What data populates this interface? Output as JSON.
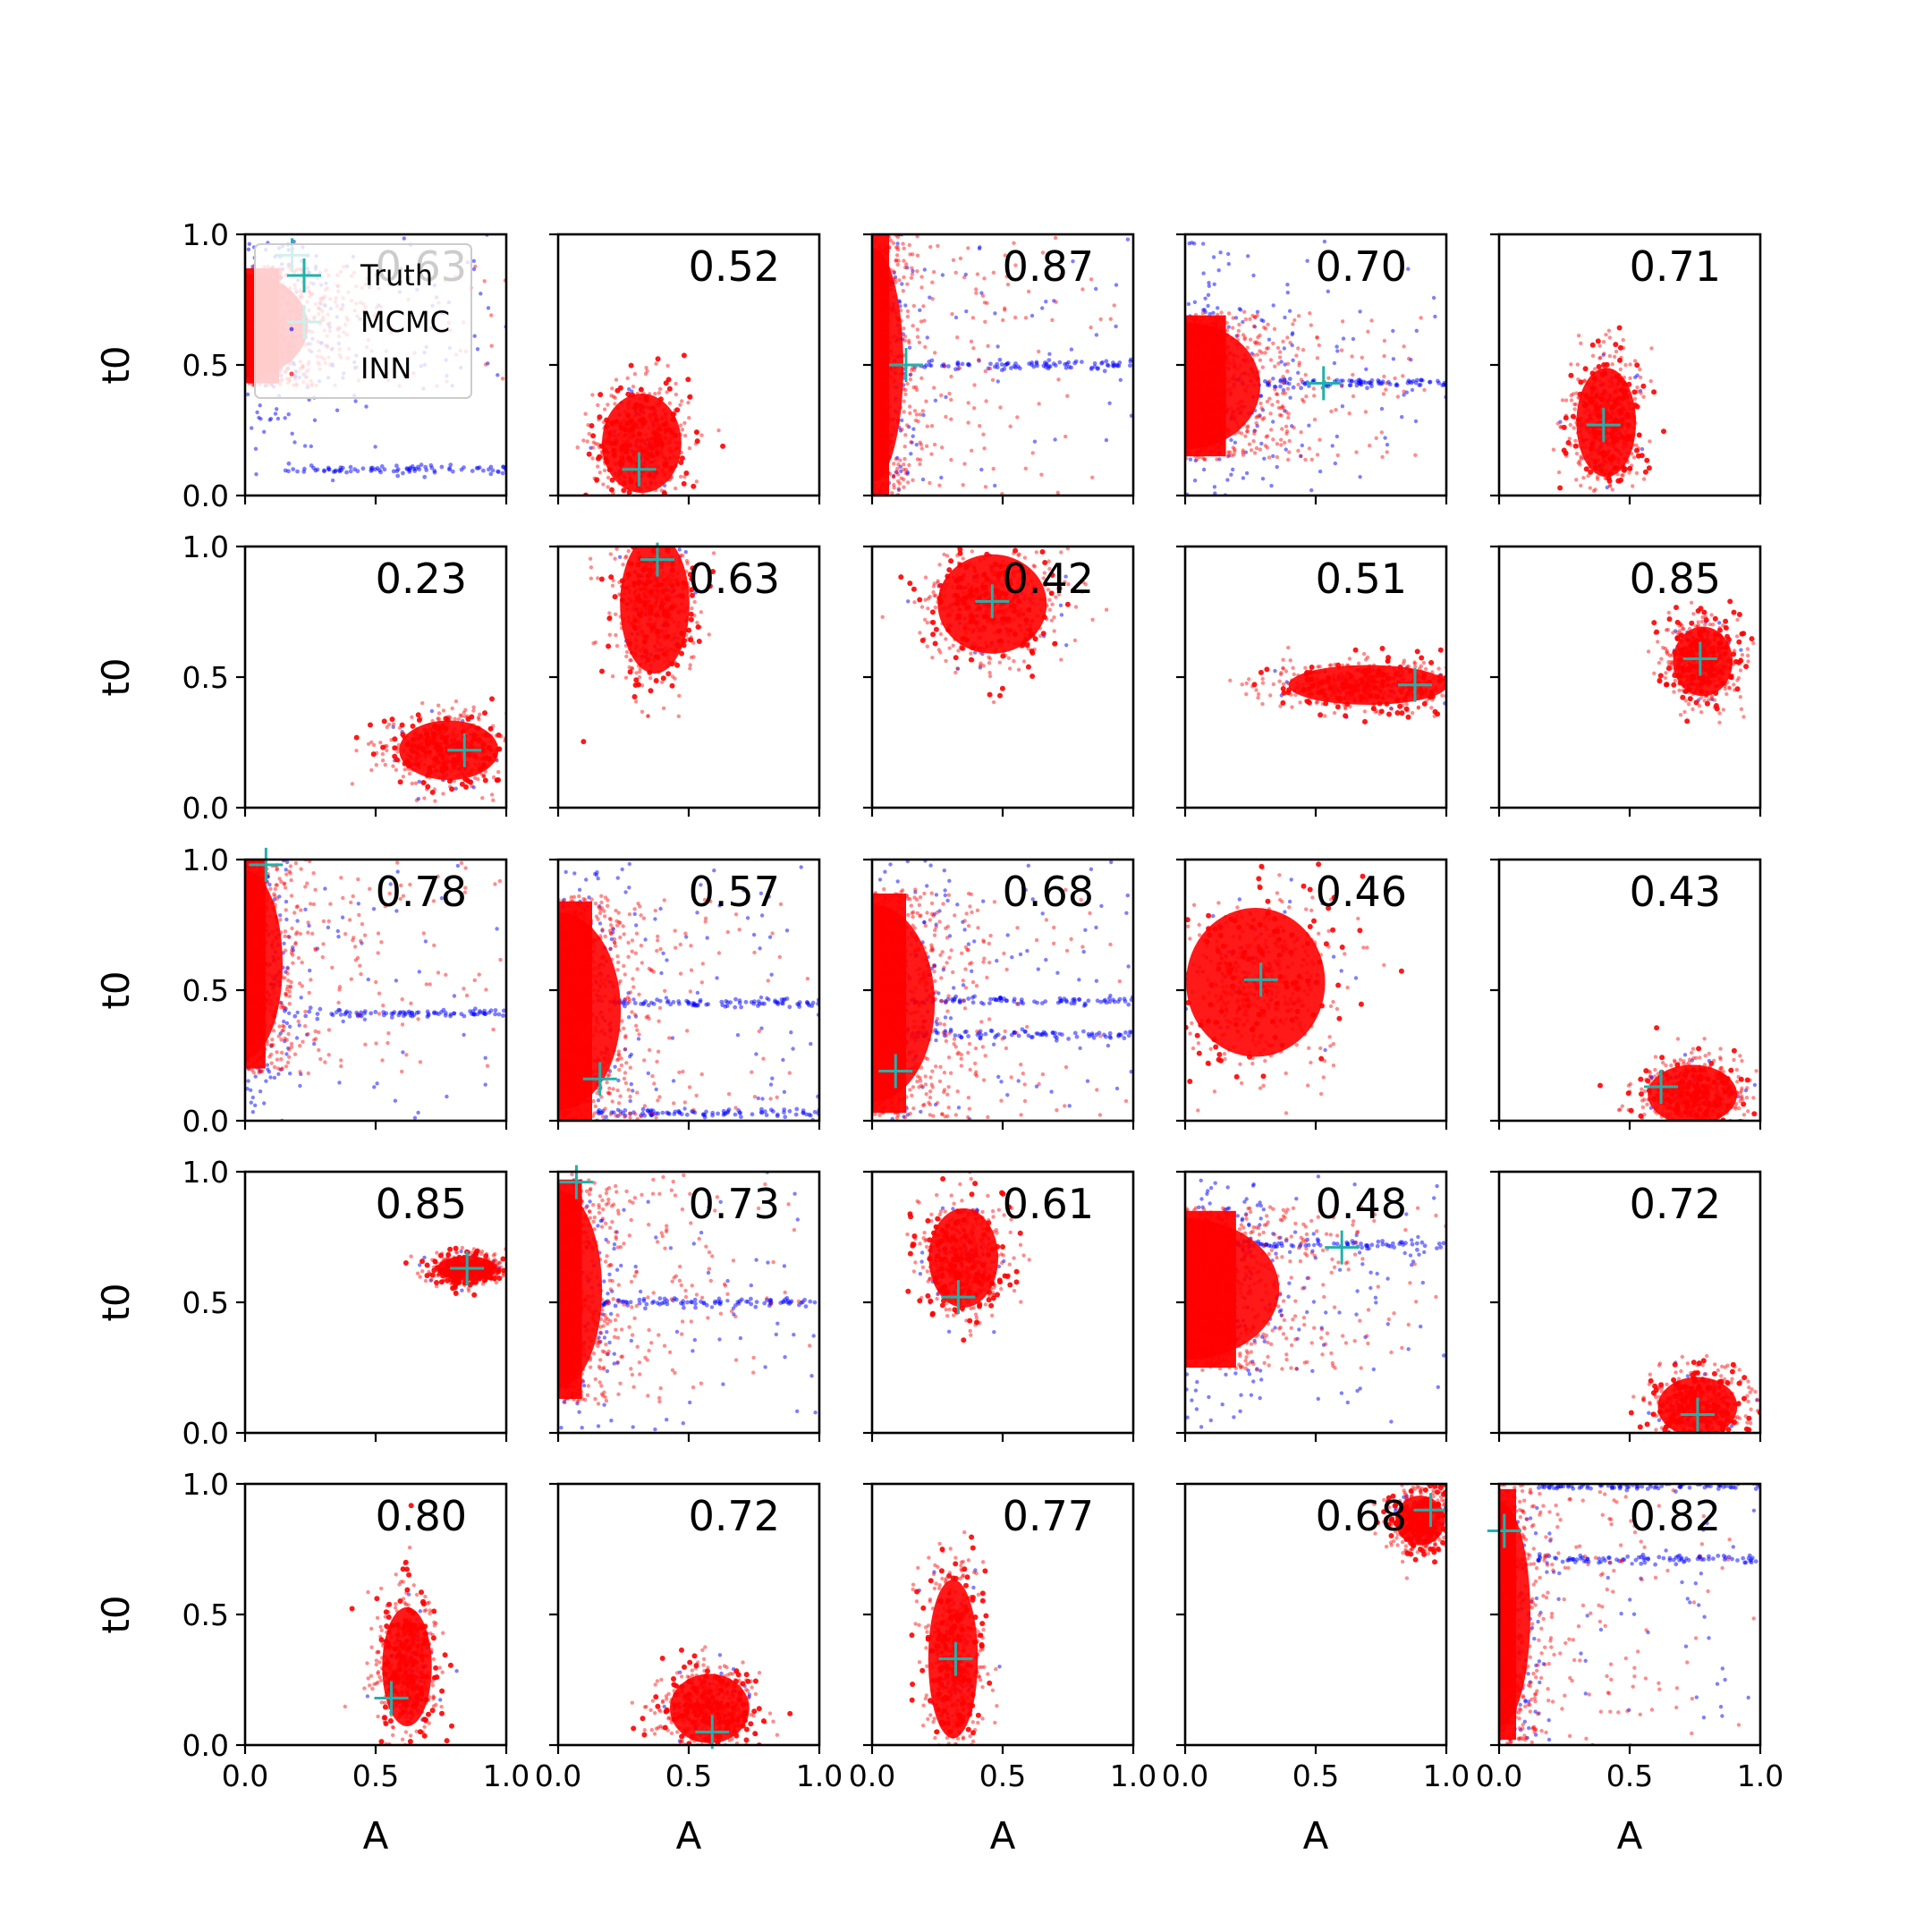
{
  "chart_data": {
    "type": "scatter",
    "layout": {
      "rows": 5,
      "cols": 5
    },
    "xlabel": "A",
    "ylabel": "t0",
    "xlim": [
      0,
      1
    ],
    "ylim": [
      0,
      1
    ],
    "xticks": [
      "0.0",
      "0.5",
      "1.0"
    ],
    "yticks": [
      "0.0",
      "0.5",
      "1.0"
    ],
    "grid": false,
    "legend": {
      "placement": "top-left of first panel",
      "entries": [
        {
          "label": "Truth",
          "color": "#20b2aa",
          "marker": "plus"
        },
        {
          "label": "MCMC",
          "color": "#0000ff",
          "marker": "dot"
        },
        {
          "label": "INN",
          "color": "#ff0000",
          "marker": "dot"
        }
      ]
    },
    "series_colors": {
      "Truth": "#20b2aa",
      "MCMC": "#0000ff",
      "INN": "#ff0000"
    },
    "panels": [
      {
        "corr": "0.63",
        "truth": [
          0.18,
          0.92
        ],
        "shape": "degenerate",
        "center": [
          0.15,
          0.65
        ],
        "spread": [
          0.1,
          0.22
        ],
        "lines": [
          0.1
        ]
      },
      {
        "corr": "0.52",
        "truth": [
          0.31,
          0.1
        ],
        "shape": "blob",
        "center": [
          0.32,
          0.2
        ],
        "spread": [
          0.08,
          0.1
        ]
      },
      {
        "corr": "0.87",
        "truth": [
          0.13,
          0.5
        ],
        "shape": "degenerate",
        "center": [
          0.08,
          0.5
        ],
        "spread": [
          0.05,
          0.5
        ],
        "lines": [
          0.5
        ]
      },
      {
        "corr": "0.70",
        "truth": [
          0.53,
          0.43
        ],
        "shape": "degenerate",
        "center": [
          0.18,
          0.42
        ],
        "spread": [
          0.12,
          0.27
        ],
        "lines": [
          0.43
        ]
      },
      {
        "corr": "0.71",
        "truth": [
          0.4,
          0.27
        ],
        "shape": "blob",
        "center": [
          0.41,
          0.28
        ],
        "spread": [
          0.06,
          0.11
        ]
      },
      {
        "corr": "0.23",
        "truth": [
          0.84,
          0.22
        ],
        "shape": "blob",
        "center": [
          0.78,
          0.22
        ],
        "spread": [
          0.1,
          0.06
        ]
      },
      {
        "corr": "0.63",
        "truth": [
          0.38,
          0.95
        ],
        "shape": "blob",
        "center": [
          0.37,
          0.78
        ],
        "spread": [
          0.07,
          0.14
        ]
      },
      {
        "corr": "0.42",
        "truth": [
          0.46,
          0.79
        ],
        "shape": "blob",
        "center": [
          0.46,
          0.78
        ],
        "spread": [
          0.11,
          0.1
        ]
      },
      {
        "corr": "0.51",
        "truth": [
          0.88,
          0.47
        ],
        "shape": "blob",
        "center": [
          0.7,
          0.47
        ],
        "spread": [
          0.16,
          0.04
        ]
      },
      {
        "corr": "0.85",
        "truth": [
          0.77,
          0.57
        ],
        "shape": "blob",
        "center": [
          0.78,
          0.56
        ],
        "spread": [
          0.06,
          0.07
        ]
      },
      {
        "corr": "0.78",
        "truth": [
          0.08,
          0.98
        ],
        "shape": "degenerate",
        "center": [
          0.1,
          0.6
        ],
        "spread": [
          0.06,
          0.4
        ],
        "lines": [
          0.41
        ]
      },
      {
        "corr": "0.57",
        "truth": [
          0.16,
          0.16
        ],
        "shape": "degenerate",
        "center": [
          0.12,
          0.42
        ],
        "spread": [
          0.1,
          0.42
        ],
        "lines": [
          0.45,
          0.03
        ]
      },
      {
        "corr": "0.68",
        "truth": [
          0.09,
          0.19
        ],
        "shape": "degenerate",
        "center": [
          0.1,
          0.45
        ],
        "spread": [
          0.1,
          0.42
        ],
        "lines": [
          0.46,
          0.33
        ]
      },
      {
        "corr": "0.46",
        "truth": [
          0.29,
          0.54
        ],
        "shape": "blob",
        "center": [
          0.27,
          0.53
        ],
        "spread": [
          0.14,
          0.15
        ]
      },
      {
        "corr": "0.43",
        "truth": [
          0.62,
          0.13
        ],
        "shape": "blob",
        "center": [
          0.74,
          0.1
        ],
        "spread": [
          0.09,
          0.06
        ]
      },
      {
        "corr": "0.85",
        "truth": [
          0.85,
          0.63
        ],
        "shape": "blob",
        "center": [
          0.85,
          0.63
        ],
        "spread": [
          0.06,
          0.025
        ]
      },
      {
        "corr": "0.73",
        "truth": [
          0.07,
          0.96
        ],
        "shape": "degenerate",
        "center": [
          0.09,
          0.55
        ],
        "spread": [
          0.07,
          0.42
        ],
        "lines": [
          0.5
        ]
      },
      {
        "corr": "0.61",
        "truth": [
          0.33,
          0.52
        ],
        "shape": "blob",
        "center": [
          0.35,
          0.67
        ],
        "spread": [
          0.07,
          0.1
        ]
      },
      {
        "corr": "0.48",
        "truth": [
          0.6,
          0.71
        ],
        "shape": "degenerate",
        "center": [
          0.18,
          0.55
        ],
        "spread": [
          0.15,
          0.3
        ],
        "lines": [
          0.72
        ]
      },
      {
        "corr": "0.72",
        "truth": [
          0.76,
          0.07
        ],
        "shape": "blob",
        "center": [
          0.76,
          0.1
        ],
        "spread": [
          0.08,
          0.06
        ]
      },
      {
        "corr": "0.80",
        "truth": [
          0.56,
          0.18
        ],
        "shape": "blob",
        "center": [
          0.62,
          0.3
        ],
        "spread": [
          0.05,
          0.12
        ]
      },
      {
        "corr": "0.72",
        "truth": [
          0.59,
          0.05
        ],
        "shape": "blob",
        "center": [
          0.58,
          0.14
        ],
        "spread": [
          0.08,
          0.07
        ]
      },
      {
        "corr": "0.77",
        "truth": [
          0.32,
          0.33
        ],
        "shape": "blob",
        "center": [
          0.31,
          0.33
        ],
        "spread": [
          0.05,
          0.16
        ]
      },
      {
        "corr": "0.68",
        "truth": [
          0.94,
          0.9
        ],
        "shape": "blob",
        "center": [
          0.9,
          0.86
        ],
        "spread": [
          0.05,
          0.05
        ]
      },
      {
        "corr": "0.82",
        "truth": [
          0.02,
          0.82
        ],
        "shape": "degenerate",
        "center": [
          0.06,
          0.5
        ],
        "spread": [
          0.05,
          0.48
        ],
        "lines": [
          0.99,
          0.71
        ]
      }
    ]
  }
}
